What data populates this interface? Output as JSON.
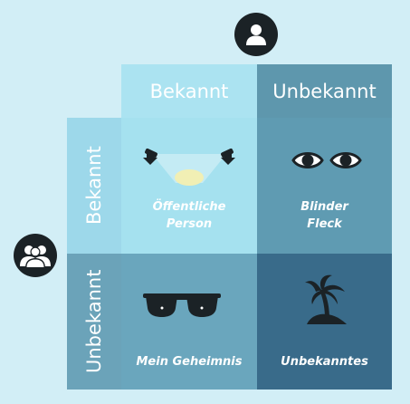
{
  "columns": {
    "known": "Bekannt",
    "unknown": "Unbekannt"
  },
  "rows": {
    "known": "Bekannt",
    "unknown": "Unbekannt"
  },
  "quadrants": {
    "open": {
      "line1": "Öffentliche",
      "line2": "Person"
    },
    "blind": {
      "line1": "Blinder",
      "line2": "Fleck"
    },
    "hidden": {
      "label": "Mein Geheimnis"
    },
    "unknown": {
      "label": "Unbekanntes"
    }
  },
  "colors": {
    "background": "#d2eef6",
    "header_known": "#abe3f1",
    "header_unknown": "#5e97ad",
    "row_known": "#9dd8ea",
    "row_unknown": "#6ba3b9",
    "open": "#a5e1ef",
    "blind": "#5f9bb2",
    "hidden": "#6aa6bd",
    "unknown": "#396b8a",
    "icon": "#1b2226"
  },
  "icons": {
    "self": "user-icon",
    "others": "group-icon",
    "open": "spotlight-icon",
    "blind": "eyes-icon",
    "hidden": "sunglasses-icon",
    "unknown": "palm-island-icon"
  }
}
